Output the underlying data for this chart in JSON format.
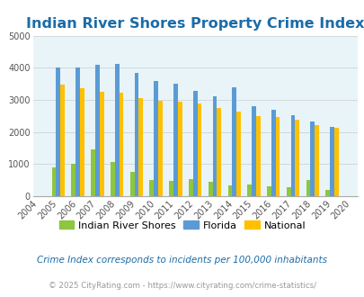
{
  "title": "Indian River Shores Property Crime Index",
  "years": [
    2004,
    2005,
    2006,
    2007,
    2008,
    2009,
    2010,
    2011,
    2012,
    2013,
    2014,
    2015,
    2016,
    2017,
    2018,
    2019,
    2020
  ],
  "indian_river_shores": [
    0,
    900,
    1000,
    1450,
    1050,
    750,
    500,
    460,
    540,
    450,
    320,
    370,
    290,
    285,
    510,
    200,
    0
  ],
  "florida": [
    0,
    4020,
    4000,
    4080,
    4130,
    3840,
    3580,
    3510,
    3290,
    3110,
    3400,
    2810,
    2690,
    2510,
    2320,
    2160,
    0
  ],
  "national": [
    0,
    3460,
    3350,
    3260,
    3230,
    3040,
    2960,
    2940,
    2890,
    2740,
    2620,
    2500,
    2460,
    2380,
    2220,
    2130,
    0
  ],
  "ylim": [
    0,
    5000
  ],
  "yticks": [
    0,
    1000,
    2000,
    3000,
    4000,
    5000
  ],
  "bar_width": 0.22,
  "colors": {
    "indian_river_shores": "#8dc63f",
    "florida": "#5b9bd5",
    "national": "#ffc000"
  },
  "bg_color": "#e8f4f8",
  "title_color": "#1b6ca8",
  "title_fontsize": 11.5,
  "legend_labels": [
    "Indian River Shores",
    "Florida",
    "National"
  ],
  "footnote1": "Crime Index corresponds to incidents per 100,000 inhabitants",
  "footnote2": "© 2025 CityRating.com - https://www.cityrating.com/crime-statistics/",
  "footnote1_color": "#1b6ca8",
  "footnote2_color": "#999999"
}
